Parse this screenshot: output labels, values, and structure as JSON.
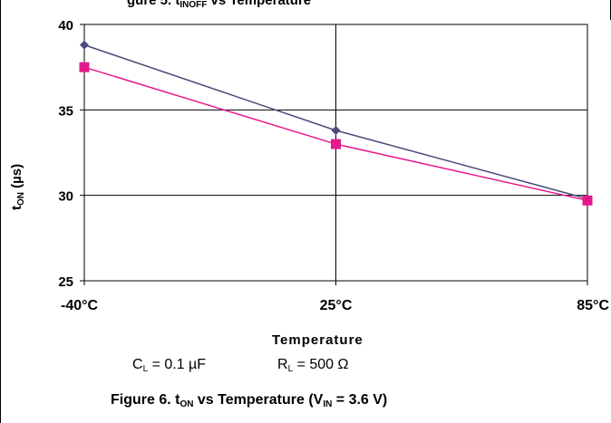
{
  "header": {
    "caption_fragment_1": "gure 5. t",
    "caption_sub": "INOFF",
    "caption_fragment_2": "vs Temperature"
  },
  "chart_data": {
    "type": "line",
    "categories": [
      "-40°C",
      "25°C",
      "85°C"
    ],
    "series": [
      {
        "name": "",
        "color": "#4a4a7a",
        "marker": "diamond",
        "values": [
          38.8,
          33.8,
          29.8
        ]
      },
      {
        "name": "",
        "color": "#e6198c",
        "marker": "square",
        "values": [
          37.5,
          33.0,
          29.7
        ]
      }
    ],
    "ylim": [
      25,
      40
    ],
    "yticks": [
      25,
      30,
      35,
      40
    ],
    "grid": true,
    "ylabel_main": "t",
    "ylabel_sub": "ON",
    "ylabel_unit": "(µs)",
    "xlabel": "Temperature"
  },
  "conditions": {
    "cl_label": "C",
    "cl_sub": "L",
    "cl_value": "= 0.1 µF",
    "rl_label": "R",
    "rl_sub": "L",
    "rl_value": "= 500 Ω"
  },
  "figure_caption": {
    "prefix": "Figure 6. t",
    "sub1": "ON",
    "middle": "vs Temperature (V",
    "sub2": "IN",
    "suffix": "= 3.6 V)"
  }
}
